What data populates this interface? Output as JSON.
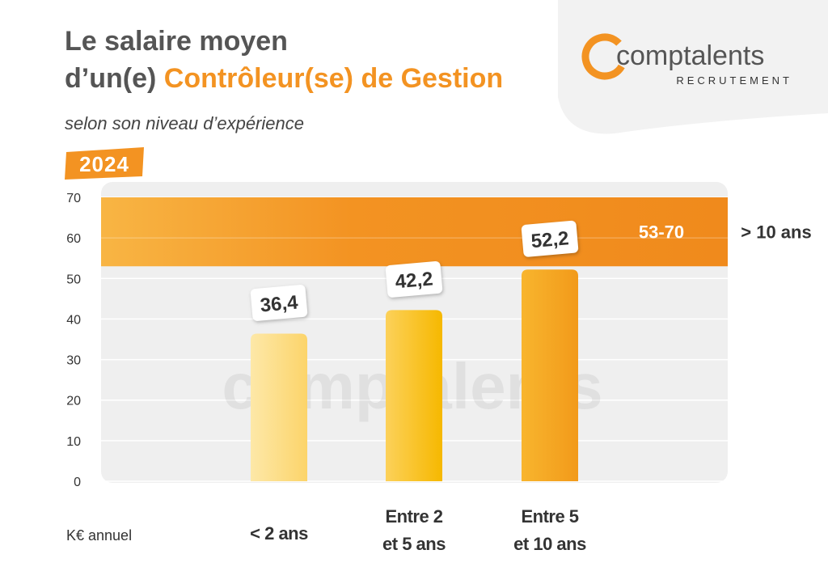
{
  "chart_data": {
    "type": "bar",
    "title": [
      "Le salaire moyen",
      "d’un(e) ",
      "Contrôleur(se) de Gestion"
    ],
    "subtitle": "selon son niveau d’expérience",
    "year": "2024",
    "brand": "comptalents",
    "brand_tagline": "RECRUTEMENT",
    "y_unit": "K€ annuel",
    "categories": [
      "< 2 ans",
      "Entre 2\net 5 ans",
      "Entre 5\net 10 ans"
    ],
    "values": [
      36.4,
      42.2,
      52.2
    ],
    "value_labels": [
      "36,4",
      "42,2",
      "52,2"
    ],
    "colors": [
      "#fcd977",
      "#f8bd1c",
      "#f39c1e"
    ],
    "range_band": {
      "category": "> 10 ans",
      "low": 53,
      "high": 70,
      "label": "53-70",
      "color": "#f39322"
    },
    "ylim": [
      0,
      70
    ],
    "yticks": [
      0,
      10,
      20,
      30,
      40,
      50,
      60,
      70
    ],
    "grid": true
  }
}
